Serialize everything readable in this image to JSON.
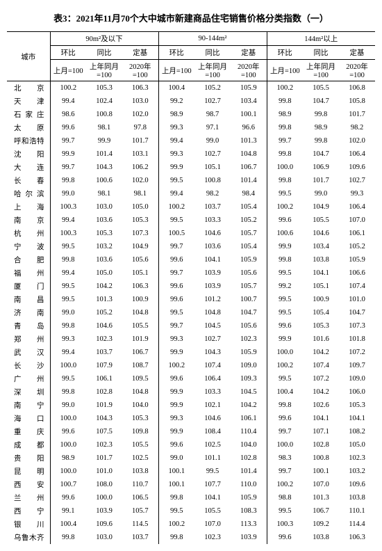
{
  "title": "表3：2021年11月70个大中城市新建商品住宅销售价格分类指数（一）",
  "groups": [
    "90m²及以下",
    "90-144m²",
    "144m²以上"
  ],
  "subheaders": [
    "环比",
    "同比",
    "定基"
  ],
  "bases": [
    "上月=100",
    "上年同月=100",
    "2020年=100"
  ],
  "city_header": "城市",
  "cities": [
    "北　　京",
    "天　　津",
    "石 家 庄",
    "太　　原",
    "呼和浩特",
    "沈　　阳",
    "大　　连",
    "长　　春",
    "哈 尔 滨",
    "上　　海",
    "南　　京",
    "杭　　州",
    "宁　　波",
    "合　　肥",
    "福　　州",
    "厦　　门",
    "南　　昌",
    "济　　南",
    "青　　岛",
    "郑　　州",
    "武　　汉",
    "长　　沙",
    "广　　州",
    "深　　圳",
    "南　　宁",
    "海　　口",
    "重　　庆",
    "成　　都",
    "贵　　阳",
    "昆　　明",
    "西　　安",
    "兰　　州",
    "西　　宁",
    "银　　川",
    "乌鲁木齐"
  ],
  "rows": [
    [
      100.2,
      105.3,
      106.3,
      100.4,
      105.2,
      105.9,
      100.2,
      105.5,
      106.8
    ],
    [
      99.4,
      102.4,
      103.0,
      99.2,
      102.7,
      103.4,
      99.8,
      104.7,
      105.8
    ],
    [
      98.6,
      100.8,
      102.0,
      98.9,
      98.7,
      100.1,
      98.9,
      99.8,
      101.7
    ],
    [
      99.6,
      98.1,
      97.8,
      99.3,
      97.1,
      96.6,
      99.8,
      98.9,
      98.2
    ],
    [
      99.7,
      99.9,
      101.7,
      99.4,
      99.0,
      101.3,
      99.7,
      99.8,
      102.0
    ],
    [
      99.9,
      101.4,
      103.1,
      99.3,
      102.7,
      104.8,
      99.8,
      104.7,
      106.4
    ],
    [
      99.7,
      104.3,
      106.2,
      99.9,
      105.1,
      106.7,
      100.0,
      106.9,
      109.6
    ],
    [
      99.8,
      100.6,
      102.0,
      99.5,
      100.8,
      101.4,
      99.8,
      101.7,
      102.7
    ],
    [
      99.0,
      98.1,
      98.1,
      99.4,
      98.2,
      98.4,
      99.5,
      99.0,
      99.3
    ],
    [
      100.3,
      103.0,
      105.0,
      100.2,
      103.7,
      105.4,
      100.2,
      104.9,
      106.4
    ],
    [
      99.4,
      103.6,
      105.3,
      99.5,
      103.3,
      105.2,
      99.6,
      105.5,
      107.0
    ],
    [
      100.3,
      105.3,
      107.3,
      100.5,
      104.6,
      105.7,
      100.6,
      104.6,
      106.1
    ],
    [
      99.5,
      103.2,
      104.9,
      99.7,
      103.6,
      105.4,
      99.9,
      103.4,
      105.2
    ],
    [
      99.8,
      103.6,
      105.6,
      99.6,
      104.1,
      105.9,
      99.8,
      103.8,
      105.9
    ],
    [
      99.4,
      105.0,
      105.1,
      99.7,
      103.9,
      105.6,
      99.5,
      104.1,
      106.6
    ],
    [
      99.5,
      104.2,
      106.3,
      99.6,
      103.9,
      105.7,
      99.2,
      105.1,
      107.4
    ],
    [
      99.5,
      101.3,
      100.9,
      99.6,
      101.2,
      100.7,
      99.5,
      100.9,
      101.0
    ],
    [
      99.0,
      105.2,
      104.8,
      99.5,
      104.8,
      104.7,
      99.5,
      105.4,
      104.7
    ],
    [
      99.8,
      104.6,
      105.5,
      99.7,
      104.5,
      105.6,
      99.6,
      105.3,
      107.3
    ],
    [
      99.3,
      102.3,
      101.9,
      99.3,
      102.7,
      102.3,
      99.9,
      101.6,
      101.8
    ],
    [
      99.4,
      103.7,
      106.7,
      99.9,
      104.3,
      105.9,
      100.0,
      104.2,
      107.2
    ],
    [
      100.0,
      107.9,
      108.7,
      100.2,
      107.4,
      109.0,
      100.2,
      107.4,
      109.7
    ],
    [
      99.5,
      106.1,
      109.5,
      99.6,
      106.4,
      109.3,
      99.5,
      107.2,
      109.0
    ],
    [
      99.8,
      102.8,
      104.8,
      99.9,
      103.3,
      104.5,
      100.4,
      104.2,
      106.0
    ],
    [
      99.0,
      101.9,
      104.0,
      99.9,
      102.1,
      104.2,
      99.8,
      102.6,
      105.3
    ],
    [
      100.0,
      104.3,
      105.3,
      99.3,
      104.6,
      106.1,
      99.6,
      104.1,
      104.1
    ],
    [
      99.6,
      107.5,
      109.8,
      99.9,
      108.4,
      110.4,
      99.7,
      107.1,
      108.2
    ],
    [
      100.0,
      102.3,
      105.5,
      99.6,
      102.5,
      104.0,
      100.0,
      102.8,
      105.0
    ],
    [
      98.9,
      101.7,
      102.5,
      99.0,
      101.1,
      102.8,
      98.3,
      100.8,
      102.3
    ],
    [
      100.0,
      101.0,
      103.8,
      100.1,
      99.5,
      101.4,
      99.7,
      100.1,
      103.2
    ],
    [
      100.7,
      108.0,
      110.7,
      100.1,
      107.7,
      110.0,
      100.2,
      107.0,
      109.6
    ],
    [
      99.6,
      100.0,
      106.5,
      99.8,
      104.1,
      105.9,
      98.8,
      101.3,
      103.8
    ],
    [
      99.1,
      103.9,
      105.7,
      99.5,
      105.5,
      108.3,
      99.5,
      106.7,
      110.1
    ],
    [
      100.4,
      109.6,
      114.5,
      100.2,
      107.0,
      113.3,
      100.3,
      109.2,
      114.4
    ],
    [
      99.8,
      103.0,
      103.7,
      99.8,
      102.3,
      103.9,
      99.6,
      103.8,
      106.3
    ]
  ]
}
